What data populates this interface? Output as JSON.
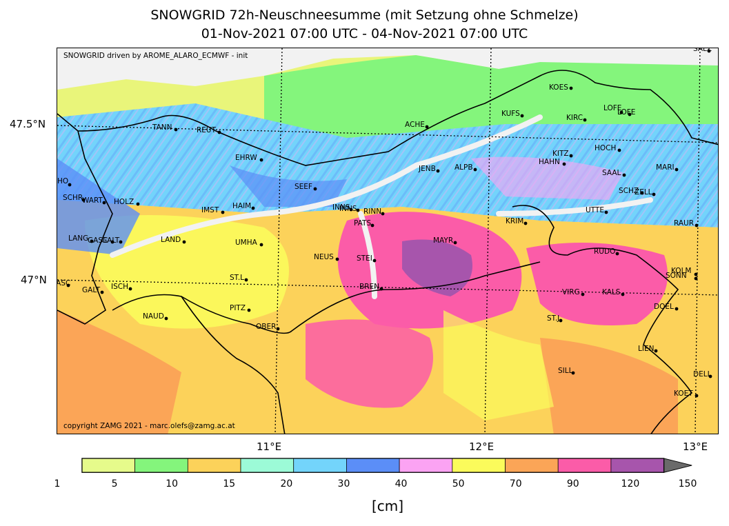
{
  "title_line1": "SNOWGRID 72h-Neuschneesumme (mit Setzung ohne Schmelze)",
  "title_line2": "01-Nov-2021 07:00 UTC - 04-Nov-2021 07:00 UTC",
  "note_top": "SNOWGRID driven by AROME_ALARO_ECMWF - init",
  "note_bottom": "copyright ZAMG 2021 - marc.olefs@zamg.ac.at",
  "axes": {
    "lat_labels": [
      "47.5°N",
      "47°N"
    ],
    "lon_labels": [
      "11°E",
      "12°E",
      "13°E"
    ]
  },
  "stations": [
    {
      "name": "SALZ"
    },
    {
      "name": "KOES"
    },
    {
      "name": "KUFS"
    },
    {
      "name": "KIRC"
    },
    {
      "name": "LOFE"
    },
    {
      "name": "LOFE"
    },
    {
      "name": "TANN"
    },
    {
      "name": "REUT"
    },
    {
      "name": "ACHE"
    },
    {
      "name": "KITZ"
    },
    {
      "name": "HOCH"
    },
    {
      "name": "HAHN"
    },
    {
      "name": "EHRW"
    },
    {
      "name": "JENB"
    },
    {
      "name": "ALPB"
    },
    {
      "name": "SAAL"
    },
    {
      "name": "MARI"
    },
    {
      "name": "SCHO"
    },
    {
      "name": "SEEF"
    },
    {
      "name": "SCHZ"
    },
    {
      "name": "ZELL"
    },
    {
      "name": "SCHR"
    },
    {
      "name": "WART"
    },
    {
      "name": "HOLZ"
    },
    {
      "name": "HAIM"
    },
    {
      "name": "INNS"
    },
    {
      "name": "INNS"
    },
    {
      "name": "RINN"
    },
    {
      "name": "IMST"
    },
    {
      "name": "UTTE"
    },
    {
      "name": "PATS"
    },
    {
      "name": "KRIM"
    },
    {
      "name": "RAUR"
    },
    {
      "name": "LANG"
    },
    {
      "name": "GASC"
    },
    {
      "name": "GALT"
    },
    {
      "name": "LAND"
    },
    {
      "name": "UMHA"
    },
    {
      "name": "MAYR"
    },
    {
      "name": "NEUS"
    },
    {
      "name": "STEI"
    },
    {
      "name": "RUDO"
    },
    {
      "name": "KOLM"
    },
    {
      "name": "SONN"
    },
    {
      "name": "GASC"
    },
    {
      "name": "ST.L"
    },
    {
      "name": "BREN"
    },
    {
      "name": "GALT"
    },
    {
      "name": "ISCH"
    },
    {
      "name": "VIRG"
    },
    {
      "name": "KALS"
    },
    {
      "name": "DOEL"
    },
    {
      "name": "PITZ"
    },
    {
      "name": "NAUD"
    },
    {
      "name": "ST.J"
    },
    {
      "name": "OBER"
    },
    {
      "name": "LIEN"
    },
    {
      "name": "SILL"
    },
    {
      "name": "DELL"
    },
    {
      "name": "KOET"
    }
  ],
  "colorbar": {
    "unit": "[cm]",
    "boundaries": [
      1,
      5,
      10,
      15,
      20,
      30,
      40,
      50,
      70,
      90,
      120,
      150
    ],
    "labels": [
      "1",
      "5",
      "10",
      "15",
      "20",
      "30",
      "40",
      "50",
      "70",
      "90",
      "120",
      "150"
    ],
    "colors": [
      "#e6fb8b",
      "#84f57c",
      "#fcd25a",
      "#9cfbd7",
      "#73d4fb",
      "#5b8ef7",
      "#fba3f3",
      "#fbfb5b",
      "#fba557",
      "#fb5ca8",
      "#a755ac"
    ],
    "over_color": "#6a6a6a"
  },
  "colors": {
    "land_low": "#e9f57a",
    "valley": "#f2f2f2",
    "border": "#000000"
  }
}
